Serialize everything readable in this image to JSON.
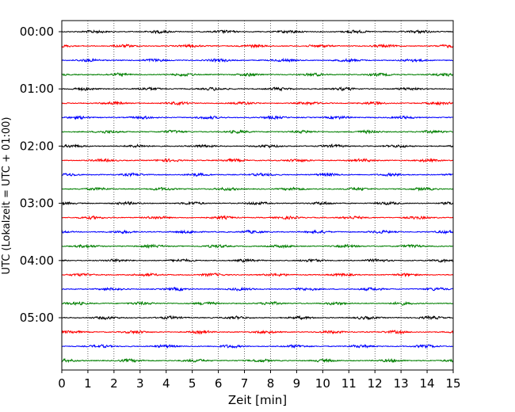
{
  "chart_data": {
    "type": "line",
    "title": "",
    "xlabel": "Zeit  [min]",
    "ylabel": "UTC (Lokalzeit = UTC + 01:00)",
    "xlim": [
      0,
      15
    ],
    "x_ticks": [
      0,
      1,
      2,
      3,
      4,
      5,
      6,
      7,
      8,
      9,
      10,
      11,
      12,
      13,
      14,
      15
    ],
    "grid": "vertical dotted",
    "y_tick_labels": [
      "00:00",
      "01:00",
      "02:00",
      "03:00",
      "04:00",
      "05:00"
    ],
    "trace_interval_min": 15,
    "traces": [
      {
        "start": "00:00",
        "color": "#000000"
      },
      {
        "start": "00:15",
        "color": "#ff0000"
      },
      {
        "start": "00:30",
        "color": "#0000ff"
      },
      {
        "start": "00:45",
        "color": "#007f00"
      },
      {
        "start": "01:00",
        "color": "#000000"
      },
      {
        "start": "01:15",
        "color": "#ff0000"
      },
      {
        "start": "01:30",
        "color": "#0000ff"
      },
      {
        "start": "01:45",
        "color": "#007f00"
      },
      {
        "start": "02:00",
        "color": "#000000"
      },
      {
        "start": "02:15",
        "color": "#ff0000"
      },
      {
        "start": "02:30",
        "color": "#0000ff"
      },
      {
        "start": "02:45",
        "color": "#007f00"
      },
      {
        "start": "03:00",
        "color": "#000000"
      },
      {
        "start": "03:15",
        "color": "#ff0000"
      },
      {
        "start": "03:30",
        "color": "#0000ff"
      },
      {
        "start": "03:45",
        "color": "#007f00"
      },
      {
        "start": "04:00",
        "color": "#000000"
      },
      {
        "start": "04:15",
        "color": "#ff0000"
      },
      {
        "start": "04:30",
        "color": "#0000ff"
      },
      {
        "start": "04:45",
        "color": "#007f00"
      },
      {
        "start": "05:00",
        "color": "#000000"
      },
      {
        "start": "05:15",
        "color": "#ff0000"
      },
      {
        "start": "05:30",
        "color": "#0000ff"
      },
      {
        "start": "05:45",
        "color": "#007f00"
      }
    ]
  }
}
